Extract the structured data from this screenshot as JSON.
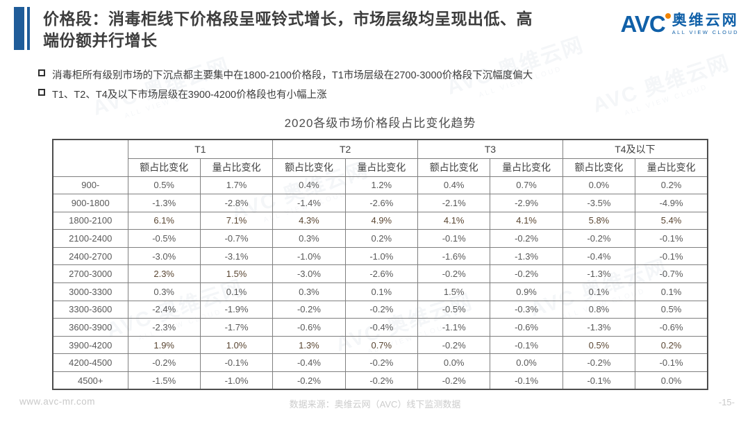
{
  "header": {
    "title_line1": "价格段：消毒柜线下价格段呈哑铃式增长，市场层级均呈现出低、高",
    "title_line2": "端份额并行增长"
  },
  "logo": {
    "mark": "AVC",
    "name": "奥维云网",
    "tagline": "ALL VIEW CLOUD"
  },
  "bullets": [
    "消毒柜所有级别市场的下沉点都主要集中在1800-2100价格段，T1市场层级在2700-3000价格段下沉幅度偏大",
    "T1、T2、T4及以下市场层级在3900-4200价格段也有小幅上涨"
  ],
  "table": {
    "title": "2020各级市场价格段占比变化趋势",
    "header": {
      "groups": [
        "T1",
        "T2",
        "T3",
        "T4及以下"
      ],
      "sub": [
        "额占比变化",
        "量占比变化"
      ]
    },
    "rows": [
      {
        "label": "900-",
        "values": [
          "0.5%",
          "1.7%",
          "0.4%",
          "1.2%",
          "0.4%",
          "0.7%",
          "0.0%",
          "0.2%"
        ],
        "highlight": []
      },
      {
        "label": "900-1800",
        "values": [
          "-1.3%",
          "-2.8%",
          "-1.4%",
          "-2.6%",
          "-2.1%",
          "-2.9%",
          "-3.5%",
          "-4.9%"
        ],
        "highlight": []
      },
      {
        "label": "1800-2100",
        "values": [
          "6.1%",
          "7.1%",
          "4.3%",
          "4.9%",
          "4.1%",
          "4.1%",
          "5.8%",
          "5.4%"
        ],
        "highlight": [
          0,
          1,
          2,
          3,
          4,
          5,
          6,
          7
        ]
      },
      {
        "label": "2100-2400",
        "values": [
          "-0.5%",
          "-0.7%",
          "0.3%",
          "0.2%",
          "-0.1%",
          "-0.2%",
          "-0.2%",
          "-0.1%"
        ],
        "highlight": []
      },
      {
        "label": "2400-2700",
        "values": [
          "-3.0%",
          "-3.1%",
          "-1.0%",
          "-1.0%",
          "-1.6%",
          "-1.3%",
          "-0.4%",
          "-0.1%"
        ],
        "highlight": []
      },
      {
        "label": "2700-3000",
        "values": [
          "2.3%",
          "1.5%",
          "-3.0%",
          "-2.6%",
          "-0.2%",
          "-0.2%",
          "-1.3%",
          "-0.7%"
        ],
        "highlight": [
          0,
          1
        ]
      },
      {
        "label": "3000-3300",
        "values": [
          "0.3%",
          "0.1%",
          "0.3%",
          "0.1%",
          "1.5%",
          "0.9%",
          "0.1%",
          "0.1%"
        ],
        "highlight": []
      },
      {
        "label": "3300-3600",
        "values": [
          "-2.4%",
          "-1.9%",
          "-0.2%",
          "-0.2%",
          "-0.5%",
          "-0.3%",
          "0.8%",
          "0.5%"
        ],
        "highlight": []
      },
      {
        "label": "3600-3900",
        "values": [
          "-2.3%",
          "-1.7%",
          "-0.6%",
          "-0.4%",
          "-1.1%",
          "-0.6%",
          "-1.3%",
          "-0.6%"
        ],
        "highlight": []
      },
      {
        "label": "3900-4200",
        "values": [
          "1.9%",
          "1.0%",
          "1.3%",
          "0.7%",
          "-0.2%",
          "-0.1%",
          "0.5%",
          "0.2%"
        ],
        "highlight": [
          0,
          1,
          2,
          3,
          6,
          7
        ]
      },
      {
        "label": "4200-4500",
        "values": [
          "-0.2%",
          "-0.1%",
          "-0.4%",
          "-0.2%",
          "0.0%",
          "0.0%",
          "-0.2%",
          "-0.1%"
        ],
        "highlight": []
      },
      {
        "label": "4500+",
        "values": [
          "-1.5%",
          "-1.0%",
          "-0.2%",
          "-0.2%",
          "-0.2%",
          "-0.1%",
          "-0.1%",
          "0.0%"
        ],
        "highlight": []
      }
    ]
  },
  "footer": {
    "site": "www.avc-mr.com",
    "source": "数据来源：奥维云网（AVC）线下监测数据",
    "page": "-15-"
  },
  "watermark": {
    "brand": "AVC 奥维云网",
    "sub": "ALL VIEW CLOUD"
  },
  "colors": {
    "accent_blue": "#1f5c99",
    "logo_blue": "#1060a8",
    "logo_dot_orange": "#f08300",
    "highlight_orange": "#ed7d31",
    "table_text": "#595959",
    "footer_gray": "#c9c9c9"
  },
  "chart_data": {
    "type": "table",
    "title": "2020各级市场价格段占比变化趋势",
    "unit": "%",
    "column_groups": [
      "T1",
      "T2",
      "T3",
      "T4及以下"
    ],
    "sub_columns": [
      "额占比变化",
      "量占比变化"
    ],
    "categories": [
      "900-",
      "900-1800",
      "1800-2100",
      "2100-2400",
      "2400-2700",
      "2700-3000",
      "3000-3300",
      "3300-3600",
      "3600-3900",
      "3900-4200",
      "4200-4500",
      "4500+"
    ],
    "series": [
      {
        "name": "T1 额占比变化",
        "values": [
          0.5,
          -1.3,
          6.1,
          -0.5,
          -3.0,
          2.3,
          0.3,
          -2.4,
          -2.3,
          1.9,
          -0.2,
          -1.5
        ]
      },
      {
        "name": "T1 量占比变化",
        "values": [
          1.7,
          -2.8,
          7.1,
          -0.7,
          -3.1,
          1.5,
          0.1,
          -1.9,
          -1.7,
          1.0,
          -0.1,
          -1.0
        ]
      },
      {
        "name": "T2 额占比变化",
        "values": [
          0.4,
          -1.4,
          4.3,
          0.3,
          -1.0,
          -3.0,
          0.3,
          -0.2,
          -0.6,
          1.3,
          -0.4,
          -0.2
        ]
      },
      {
        "name": "T2 量占比变化",
        "values": [
          1.2,
          -2.6,
          4.9,
          0.2,
          -1.0,
          -2.6,
          0.1,
          -0.2,
          -0.4,
          0.7,
          -0.2,
          -0.2
        ]
      },
      {
        "name": "T3 额占比变化",
        "values": [
          0.4,
          -2.1,
          4.1,
          -0.1,
          -1.6,
          -0.2,
          1.5,
          -0.5,
          -1.1,
          -0.2,
          0.0,
          -0.2
        ]
      },
      {
        "name": "T3 量占比变化",
        "values": [
          0.7,
          -2.9,
          4.1,
          -0.2,
          -1.3,
          -0.2,
          0.9,
          -0.3,
          -0.6,
          -0.1,
          0.0,
          -0.1
        ]
      },
      {
        "name": "T4及以下 额占比变化",
        "values": [
          0.0,
          -3.5,
          5.8,
          -0.2,
          -0.4,
          -1.3,
          0.1,
          0.8,
          -1.3,
          0.5,
          -0.2,
          -0.1
        ]
      },
      {
        "name": "T4及以下 量占比变化",
        "values": [
          0.2,
          -4.9,
          5.4,
          -0.1,
          -0.1,
          -0.7,
          0.1,
          0.5,
          -0.6,
          0.2,
          -0.1,
          0.0
        ]
      }
    ],
    "highlighted_rows": {
      "1800-2100": [
        "T1额",
        "T1量",
        "T2额",
        "T2量",
        "T3额",
        "T3量",
        "T4额",
        "T4量"
      ],
      "2700-3000": [
        "T1额",
        "T1量"
      ],
      "3900-4200": [
        "T1额",
        "T1量",
        "T2额",
        "T2量",
        "T4额",
        "T4量"
      ]
    },
    "highlight_color": "#ed7d31"
  }
}
